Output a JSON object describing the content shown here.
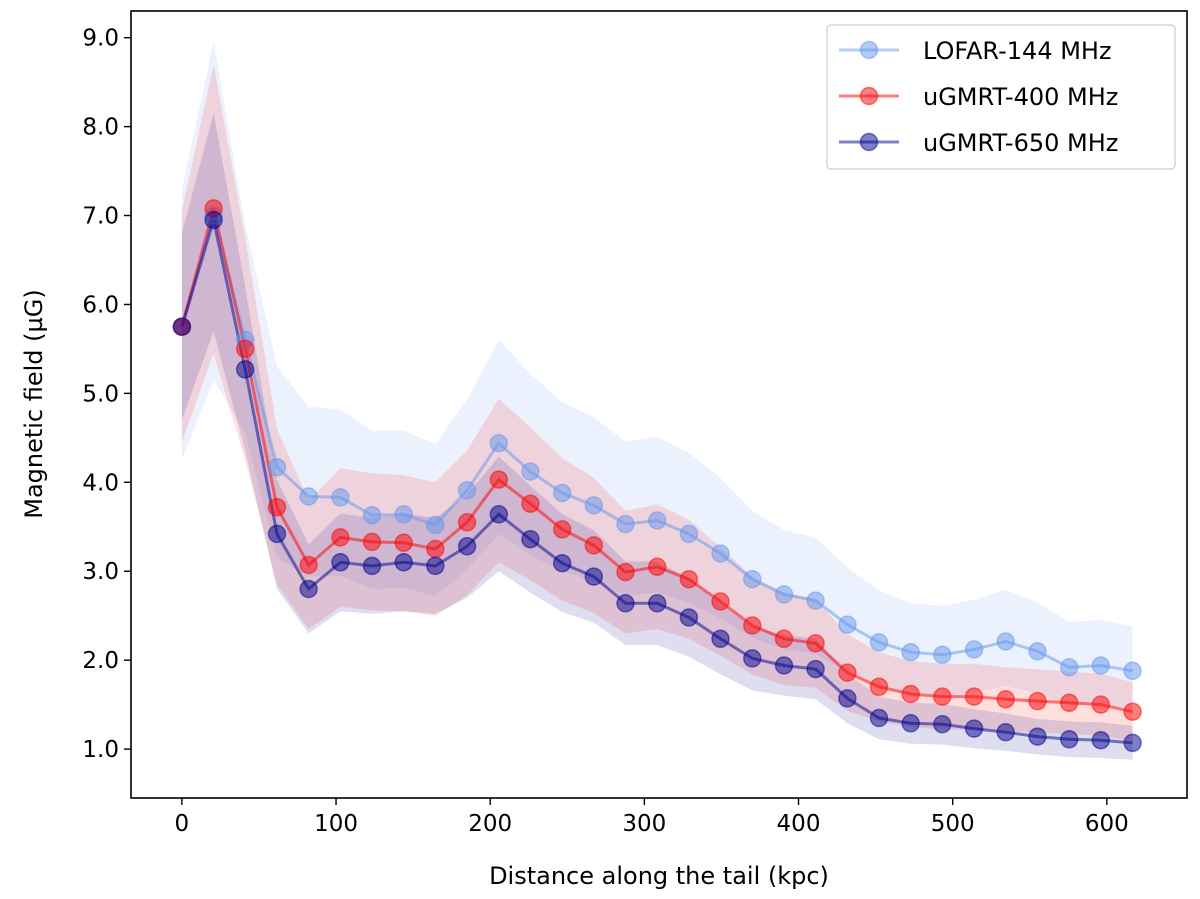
{
  "chart_data": {
    "type": "line",
    "title": "",
    "xlabel": "Distance along the tail (kpc)",
    "ylabel": "Magnetic field (µG)",
    "xlim": [
      -33,
      652
    ],
    "ylim": [
      0.45,
      9.3
    ],
    "xticks": [
      0,
      100,
      200,
      300,
      400,
      500,
      600
    ],
    "yticks": [
      1.0,
      2.0,
      3.0,
      4.0,
      5.0,
      6.0,
      7.0,
      8.0,
      9.0
    ],
    "ytick_labels": [
      "1.0",
      "2.0",
      "3.0",
      "4.0",
      "5.0",
      "6.0",
      "7.0",
      "8.0",
      "9.0"
    ],
    "legend_position": "top-right",
    "x": [
      0,
      20.6,
      41.1,
      61.7,
      82.2,
      102.8,
      123.3,
      143.9,
      164.4,
      185.0,
      205.6,
      226.1,
      246.7,
      267.2,
      287.8,
      308.3,
      328.9,
      349.4,
      370.0,
      390.6,
      411.1,
      431.7,
      452.2,
      472.8,
      493.3,
      513.9,
      534.4,
      555.0,
      575.6,
      596.1,
      616.7
    ],
    "series": [
      {
        "name": "LOFAR-144 MHz",
        "color": "#6495ED",
        "values": [
          5.75,
          7.0,
          5.6,
          4.17,
          3.84,
          3.83,
          3.63,
          3.64,
          3.52,
          3.91,
          4.44,
          4.12,
          3.88,
          3.74,
          3.53,
          3.57,
          3.42,
          3.2,
          2.91,
          2.74,
          2.67,
          2.4,
          2.2,
          2.09,
          2.06,
          2.12,
          2.21,
          2.1,
          1.92,
          1.94,
          1.88
        ],
        "band_upper": [
          7.3,
          8.95,
          6.9,
          5.3,
          4.85,
          4.82,
          4.58,
          4.58,
          4.43,
          4.93,
          5.6,
          5.22,
          4.9,
          4.73,
          4.46,
          4.51,
          4.33,
          4.05,
          3.68,
          3.46,
          3.38,
          3.04,
          2.78,
          2.64,
          2.61,
          2.68,
          2.79,
          2.65,
          2.43,
          2.45,
          2.38
        ],
        "band_lower": [
          4.25,
          5.15,
          4.55,
          3.15,
          2.95,
          2.95,
          2.8,
          2.81,
          2.72,
          3.02,
          3.42,
          3.18,
          3.0,
          2.89,
          2.73,
          2.76,
          2.64,
          2.47,
          2.25,
          2.12,
          2.07,
          1.86,
          1.7,
          1.62,
          1.6,
          1.64,
          1.71,
          1.63,
          1.49,
          1.5,
          1.46
        ]
      },
      {
        "name": "uGMRT-400 MHz",
        "color": "#FF0000",
        "values": [
          5.75,
          7.08,
          5.5,
          3.72,
          3.07,
          3.38,
          3.33,
          3.32,
          3.25,
          3.55,
          4.03,
          3.76,
          3.47,
          3.29,
          2.99,
          3.05,
          2.91,
          2.66,
          2.39,
          2.24,
          2.19,
          1.86,
          1.7,
          1.62,
          1.59,
          1.59,
          1.56,
          1.54,
          1.52,
          1.5,
          1.42
        ],
        "band_upper": [
          7.05,
          8.7,
          6.75,
          4.6,
          3.8,
          4.16,
          4.1,
          4.08,
          4.0,
          4.36,
          4.94,
          4.62,
          4.27,
          4.05,
          3.68,
          3.75,
          3.58,
          3.27,
          2.94,
          2.76,
          2.69,
          2.29,
          2.09,
          1.99,
          1.96,
          1.96,
          1.92,
          1.9,
          1.87,
          1.85,
          1.75
        ],
        "band_lower": [
          4.45,
          5.45,
          4.25,
          2.85,
          2.35,
          2.6,
          2.56,
          2.55,
          2.5,
          2.73,
          3.1,
          2.9,
          2.67,
          2.53,
          2.3,
          2.35,
          2.24,
          2.05,
          1.84,
          1.72,
          1.69,
          1.43,
          1.31,
          1.25,
          1.22,
          1.22,
          1.2,
          1.19,
          1.17,
          1.15,
          1.09
        ]
      },
      {
        "name": "uGMRT-650 MHz",
        "color": "#00008B",
        "values": [
          5.75,
          6.95,
          5.27,
          3.42,
          2.8,
          3.1,
          3.06,
          3.1,
          3.06,
          3.28,
          3.64,
          3.36,
          3.09,
          2.94,
          2.64,
          2.64,
          2.48,
          2.24,
          2.02,
          1.94,
          1.9,
          1.57,
          1.35,
          1.29,
          1.28,
          1.23,
          1.19,
          1.14,
          1.11,
          1.1,
          1.07
        ],
        "band_upper": [
          6.8,
          8.15,
          6.2,
          4.03,
          3.3,
          3.65,
          3.6,
          3.65,
          3.6,
          3.86,
          4.29,
          3.96,
          3.64,
          3.46,
          3.11,
          3.11,
          2.92,
          2.64,
          2.38,
          2.28,
          2.24,
          1.85,
          1.59,
          1.52,
          1.51,
          1.45,
          1.4,
          1.34,
          1.31,
          1.3,
          1.26
        ],
        "band_lower": [
          4.7,
          5.7,
          4.35,
          2.8,
          2.3,
          2.55,
          2.52,
          2.55,
          2.52,
          2.7,
          3.0,
          2.76,
          2.54,
          2.42,
          2.17,
          2.17,
          2.04,
          1.84,
          1.66,
          1.6,
          1.56,
          1.29,
          1.11,
          1.06,
          1.05,
          1.01,
          0.98,
          0.94,
          0.91,
          0.9,
          0.88
        ]
      }
    ]
  }
}
